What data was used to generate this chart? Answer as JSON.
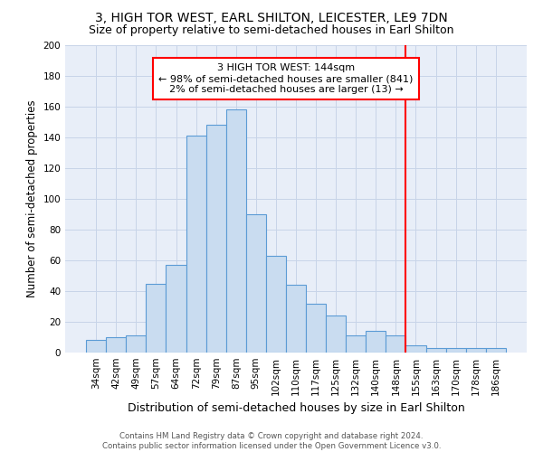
{
  "title": "3, HIGH TOR WEST, EARL SHILTON, LEICESTER, LE9 7DN",
  "subtitle": "Size of property relative to semi-detached houses in Earl Shilton",
  "xlabel": "Distribution of semi-detached houses by size in Earl Shilton",
  "ylabel": "Number of semi-detached properties",
  "footnote": "Contains HM Land Registry data © Crown copyright and database right 2024.\nContains public sector information licensed under the Open Government Licence v3.0.",
  "bar_labels": [
    "34sqm",
    "42sqm",
    "49sqm",
    "57sqm",
    "64sqm",
    "72sqm",
    "79sqm",
    "87sqm",
    "95sqm",
    "102sqm",
    "110sqm",
    "117sqm",
    "125sqm",
    "132sqm",
    "140sqm",
    "148sqm",
    "155sqm",
    "163sqm",
    "170sqm",
    "178sqm",
    "186sqm"
  ],
  "bar_values": [
    8,
    10,
    11,
    45,
    57,
    141,
    148,
    158,
    90,
    63,
    44,
    32,
    24,
    11,
    14,
    11,
    5,
    3,
    3,
    3,
    3
  ],
  "bar_color": "#c9dcf0",
  "bar_edge_color": "#5b9bd5",
  "bar_width": 1.0,
  "ylim": [
    0,
    200
  ],
  "yticks": [
    0,
    20,
    40,
    60,
    80,
    100,
    120,
    140,
    160,
    180,
    200
  ],
  "grid_color": "#c8d4e8",
  "bg_color": "#e8eef8",
  "vline_x": 15.5,
  "vline_color": "red",
  "annotation_title": "3 HIGH TOR WEST: 144sqm",
  "annotation_line1": "← 98% of semi-detached houses are smaller (841)",
  "annotation_line2": "2% of semi-detached houses are larger (13) →",
  "title_fontsize": 10,
  "subtitle_fontsize": 9,
  "xlabel_fontsize": 9,
  "ylabel_fontsize": 8.5,
  "tick_fontsize": 7.5,
  "annotation_fontsize": 8
}
